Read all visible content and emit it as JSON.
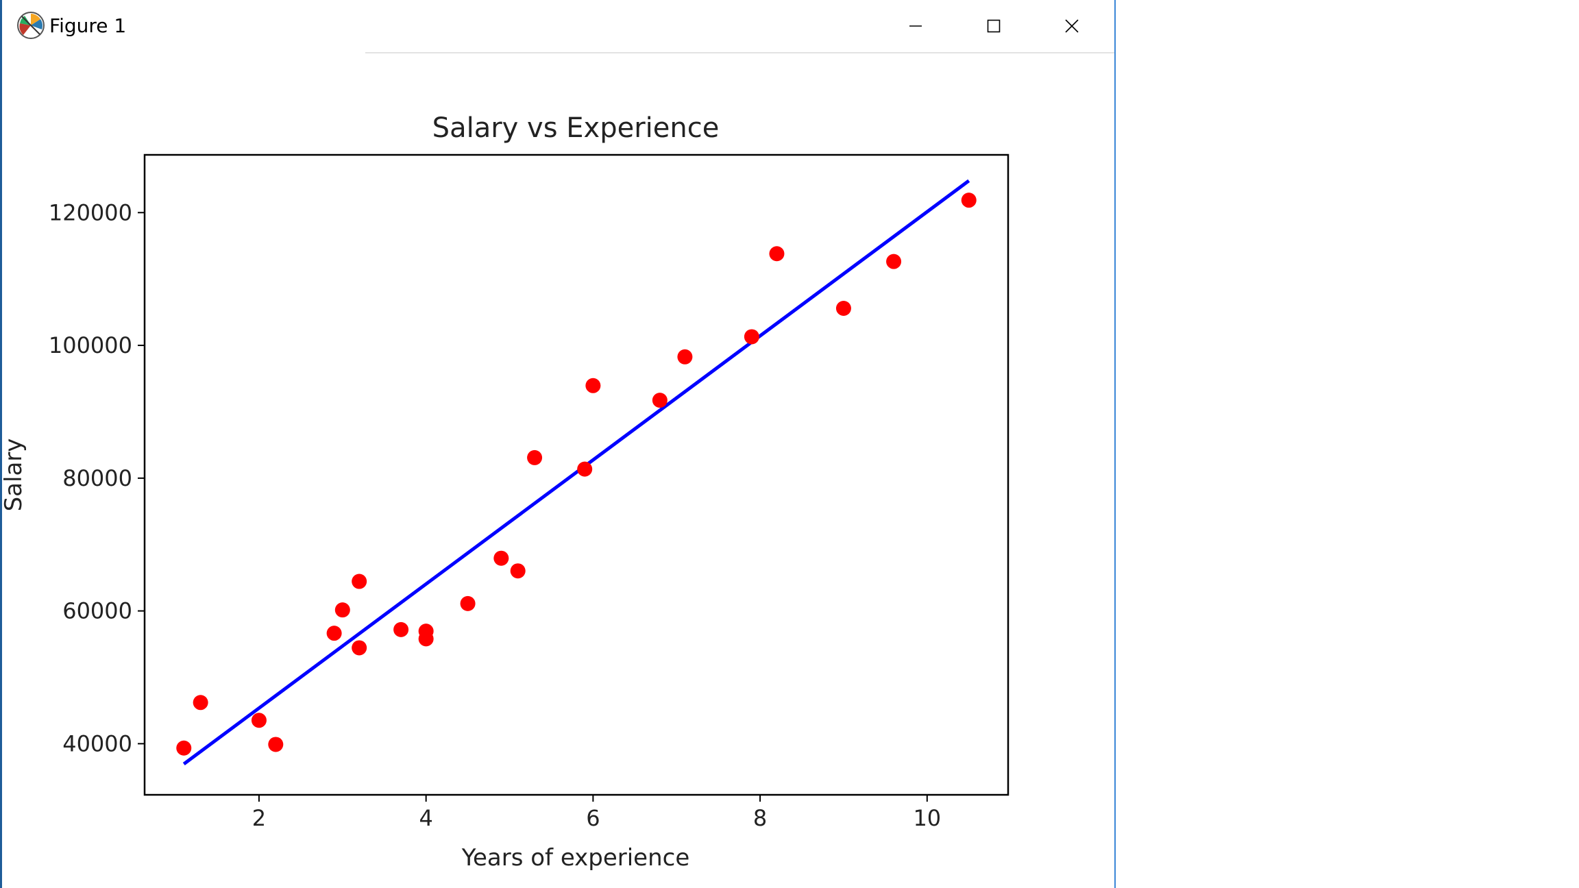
{
  "window": {
    "title": "Figure 1",
    "icons": {
      "app": "matplotlib-logo-icon",
      "minimize": "minimize-icon",
      "maximize": "maximize-icon",
      "close": "close-icon"
    }
  },
  "chart_data": {
    "type": "scatter",
    "title": "Salary vs Experience",
    "xlabel": "Years of experience",
    "ylabel": "Salary",
    "xlim": [
      0.63,
      10.97
    ],
    "ylim": [
      32300,
      128700
    ],
    "xticks": [
      2,
      4,
      6,
      8,
      10
    ],
    "xtick_labels": [
      "2",
      "4",
      "6",
      "8",
      "10"
    ],
    "yticks": [
      40000,
      60000,
      80000,
      100000,
      120000
    ],
    "ytick_labels": [
      "40000",
      "60000",
      "80000",
      "100000",
      "120000"
    ],
    "grid": false,
    "series": [
      {
        "kind": "scatter",
        "color": "#ff0000",
        "x": [
          1.1,
          1.3,
          2.0,
          2.2,
          2.9,
          3.0,
          3.2,
          3.2,
          3.7,
          4.0,
          4.0,
          4.5,
          4.9,
          5.1,
          5.3,
          5.9,
          6.0,
          6.8,
          7.1,
          7.9,
          8.2,
          9.0,
          9.6,
          10.5
        ],
        "y": [
          39343,
          46205,
          43525,
          39891,
          56642,
          60150,
          54445,
          64445,
          57189,
          56957,
          55794,
          61111,
          67938,
          66029,
          83088,
          81363,
          93940,
          91738,
          98273,
          101302,
          113812,
          105582,
          112635,
          121872
        ]
      },
      {
        "kind": "line",
        "color": "#0000ff",
        "x": [
          1.1,
          10.5
        ],
        "y": [
          36950,
          124800
        ]
      }
    ]
  }
}
